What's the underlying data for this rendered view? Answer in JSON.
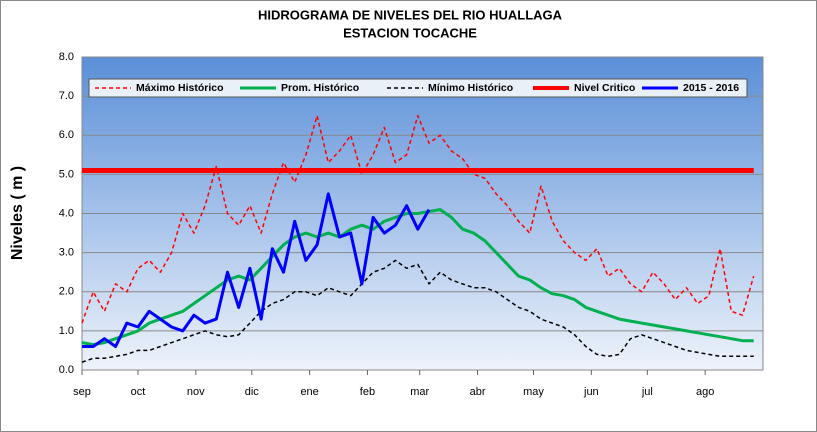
{
  "chart_data": {
    "type": "line",
    "title": "HIDROGRAMA DE NIVELES  DEL RIO HUALLAGA",
    "subtitle": "ESTACION TOCACHE",
    "y_label": "Niveles ( m )",
    "xlim": [
      0,
      365
    ],
    "xticks": [
      {
        "value": 0,
        "label": "sep"
      },
      {
        "value": 30,
        "label": "oct"
      },
      {
        "value": 61,
        "label": "nov"
      },
      {
        "value": 91,
        "label": "dic"
      },
      {
        "value": 122,
        "label": "ene"
      },
      {
        "value": 153,
        "label": "feb"
      },
      {
        "value": 181,
        "label": "mar"
      },
      {
        "value": 212,
        "label": "abr"
      },
      {
        "value": 242,
        "label": "may"
      },
      {
        "value": 273,
        "label": "jun"
      },
      {
        "value": 303,
        "label": "jul"
      },
      {
        "value": 334,
        "label": "ago"
      }
    ],
    "ylim": [
      0,
      8
    ],
    "yticks": [
      {
        "value": 0,
        "label": "0.0"
      },
      {
        "value": 1,
        "label": "1.0"
      },
      {
        "value": 2,
        "label": "2.0"
      },
      {
        "value": 3,
        "label": "3.0"
      },
      {
        "value": 4,
        "label": "4.0"
      },
      {
        "value": 5,
        "label": "5.0"
      },
      {
        "value": 6,
        "label": "6.0"
      },
      {
        "value": 7,
        "label": "7.0"
      },
      {
        "value": 8,
        "label": "8.0"
      }
    ],
    "grid": true,
    "legend": "top",
    "x": [
      0,
      6,
      12,
      18,
      24,
      30,
      36,
      42,
      48,
      54,
      60,
      66,
      72,
      78,
      84,
      90,
      96,
      102,
      108,
      114,
      120,
      126,
      132,
      138,
      144,
      150,
      156,
      162,
      168,
      174,
      180,
      186,
      192,
      198,
      204,
      210,
      216,
      222,
      228,
      234,
      240,
      246,
      252,
      258,
      264,
      270,
      276,
      282,
      288,
      294,
      300,
      306,
      312,
      318,
      324,
      330,
      336,
      342,
      348,
      354,
      360
    ],
    "series": [
      {
        "name": "Máximo Histórico",
        "color": "#ff0000",
        "dash": true,
        "width": 1.5,
        "values": [
          1.2,
          2.0,
          1.5,
          2.2,
          2.0,
          2.6,
          2.8,
          2.5,
          3.0,
          4.0,
          3.5,
          4.2,
          5.2,
          4.0,
          3.7,
          4.2,
          3.5,
          4.5,
          5.3,
          4.8,
          5.5,
          6.5,
          5.3,
          5.6,
          6.0,
          5.0,
          5.5,
          6.2,
          5.3,
          5.5,
          6.5,
          5.8,
          6.0,
          5.6,
          5.4,
          5.0,
          4.9,
          4.5,
          4.2,
          3.8,
          3.5,
          4.7,
          3.8,
          3.3,
          3.0,
          2.8,
          3.1,
          2.4,
          2.6,
          2.2,
          2.0,
          2.5,
          2.2,
          1.8,
          2.1,
          1.7,
          1.9,
          3.1,
          1.5,
          1.4,
          2.4
        ]
      },
      {
        "name": "Prom. Histórico",
        "color": "#00b050",
        "dash": false,
        "width": 3,
        "values": [
          0.7,
          0.65,
          0.7,
          0.8,
          0.9,
          1.0,
          1.2,
          1.3,
          1.4,
          1.5,
          1.7,
          1.9,
          2.1,
          2.3,
          2.4,
          2.3,
          2.6,
          2.9,
          3.2,
          3.4,
          3.5,
          3.4,
          3.5,
          3.4,
          3.6,
          3.7,
          3.6,
          3.8,
          3.9,
          4.0,
          4.0,
          4.05,
          4.1,
          3.9,
          3.6,
          3.5,
          3.3,
          3.0,
          2.7,
          2.4,
          2.3,
          2.1,
          1.95,
          1.9,
          1.8,
          1.6,
          1.5,
          1.4,
          1.3,
          1.25,
          1.2,
          1.15,
          1.1,
          1.05,
          1.0,
          0.95,
          0.9,
          0.85,
          0.8,
          0.75,
          0.75
        ]
      },
      {
        "name": "Mínimo Histórico",
        "color": "#000000",
        "dash": true,
        "width": 1.5,
        "values": [
          0.2,
          0.3,
          0.3,
          0.35,
          0.4,
          0.5,
          0.5,
          0.6,
          0.7,
          0.8,
          0.9,
          1.0,
          0.9,
          0.85,
          0.9,
          1.2,
          1.5,
          1.7,
          1.8,
          2.0,
          2.0,
          1.9,
          2.1,
          2.0,
          1.9,
          2.2,
          2.5,
          2.6,
          2.8,
          2.6,
          2.7,
          2.2,
          2.5,
          2.3,
          2.2,
          2.1,
          2.1,
          2.0,
          1.8,
          1.6,
          1.5,
          1.3,
          1.2,
          1.1,
          0.9,
          0.6,
          0.4,
          0.35,
          0.4,
          0.8,
          0.9,
          0.8,
          0.7,
          0.6,
          0.5,
          0.45,
          0.4,
          0.35,
          0.35,
          0.35,
          0.35
        ]
      },
      {
        "name": "Nivel Critico",
        "color": "#ff0000",
        "dash": false,
        "width": 5,
        "values": [
          5.1,
          5.1,
          5.1,
          5.1,
          5.1,
          5.1,
          5.1,
          5.1,
          5.1,
          5.1,
          5.1,
          5.1,
          5.1,
          5.1,
          5.1,
          5.1,
          5.1,
          5.1,
          5.1,
          5.1,
          5.1,
          5.1,
          5.1,
          5.1,
          5.1,
          5.1,
          5.1,
          5.1,
          5.1,
          5.1,
          5.1,
          5.1,
          5.1,
          5.1,
          5.1,
          5.1,
          5.1,
          5.1,
          5.1,
          5.1,
          5.1,
          5.1,
          5.1,
          5.1,
          5.1,
          5.1,
          5.1,
          5.1,
          5.1,
          5.1,
          5.1,
          5.1,
          5.1,
          5.1,
          5.1,
          5.1,
          5.1,
          5.1,
          5.1,
          5.1,
          5.1
        ]
      },
      {
        "name": "2015 - 2016",
        "color": "#0000ff",
        "dash": false,
        "width": 3,
        "values": [
          0.6,
          0.6,
          0.8,
          0.6,
          1.2,
          1.1,
          1.5,
          1.3,
          1.1,
          1.0,
          1.4,
          1.2,
          1.3,
          2.5,
          1.6,
          2.6,
          1.3,
          3.1,
          2.5,
          3.8,
          2.8,
          3.2,
          4.5,
          3.4,
          3.5,
          2.2,
          3.9,
          3.5,
          3.7,
          4.2,
          3.6,
          4.1,
          null,
          null,
          null,
          null,
          null,
          null,
          null,
          null,
          null,
          null,
          null,
          null,
          null,
          null,
          null,
          null,
          null,
          null,
          null,
          null,
          null,
          null,
          null,
          null,
          null,
          null,
          null,
          null,
          null
        ]
      }
    ]
  }
}
